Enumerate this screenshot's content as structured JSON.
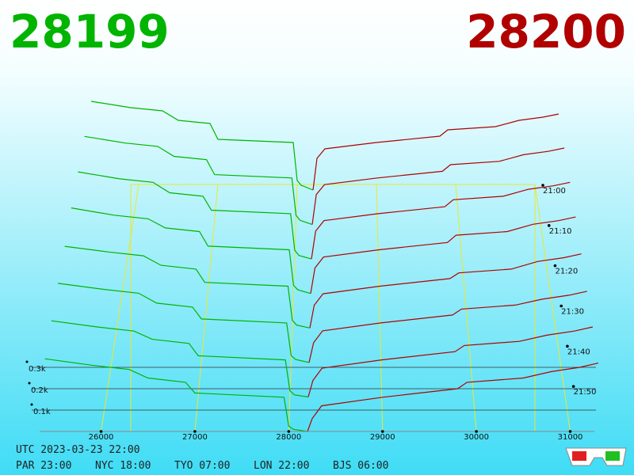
{
  "chart_data": {
    "type": "depth3d",
    "bid": 28199,
    "ask": 28200,
    "bid_color": "#00b400",
    "ask_color": "#b00000",
    "xticks": [
      26000,
      27000,
      28000,
      29000,
      30000,
      31000
    ],
    "zticks": [
      {
        "value": 100,
        "label": "0.1k"
      },
      {
        "value": 200,
        "label": "0.2k"
      },
      {
        "value": 300,
        "label": "0.3k"
      }
    ],
    "time_ticks": [
      "21:00",
      "21:10",
      "21:20",
      "21:30",
      "21:40",
      "21:50"
    ],
    "bid_prices": [
      28199,
      28050,
      28000,
      27950,
      27000,
      26900,
      26500,
      26300,
      25900,
      25400
    ],
    "ask_prices": [
      28200,
      28250,
      28350,
      29000,
      29800,
      29900,
      30500,
      30800,
      31100,
      31300
    ],
    "snapshots": [
      {
        "bids": [
          0,
          30,
          60,
          300,
          320,
          420,
          440,
          500,
          520,
          560
        ],
        "asks": [
          0,
          200,
          260,
          300,
          340,
          380,
          400,
          440,
          460,
          480
        ]
      },
      {
        "bids": [
          0,
          25,
          55,
          280,
          300,
          390,
          410,
          470,
          490,
          530
        ],
        "asks": [
          0,
          180,
          240,
          280,
          320,
          360,
          380,
          420,
          440,
          460
        ]
      },
      {
        "bids": [
          0,
          20,
          50,
          260,
          280,
          360,
          380,
          440,
          460,
          500
        ],
        "asks": [
          0,
          160,
          220,
          260,
          300,
          340,
          360,
          400,
          420,
          440
        ]
      },
      {
        "bids": [
          0,
          20,
          45,
          240,
          260,
          340,
          360,
          410,
          430,
          470
        ],
        "asks": [
          0,
          140,
          200,
          240,
          280,
          320,
          340,
          380,
          400,
          420
        ]
      },
      {
        "bids": [
          0,
          15,
          40,
          220,
          240,
          310,
          330,
          380,
          400,
          430
        ],
        "asks": [
          0,
          120,
          180,
          220,
          260,
          290,
          310,
          350,
          370,
          390
        ]
      },
      {
        "bids": [
          0,
          15,
          35,
          200,
          220,
          280,
          300,
          350,
          370,
          400
        ],
        "asks": [
          0,
          100,
          160,
          200,
          240,
          270,
          290,
          320,
          340,
          360
        ]
      },
      {
        "bids": [
          0,
          10,
          30,
          180,
          200,
          260,
          280,
          320,
          340,
          370
        ],
        "asks": [
          0,
          80,
          140,
          180,
          220,
          250,
          270,
          300,
          320,
          340
        ]
      },
      {
        "bids": [
          0,
          10,
          25,
          160,
          180,
          230,
          250,
          290,
          310,
          340
        ],
        "asks": [
          0,
          60,
          120,
          160,
          200,
          230,
          250,
          280,
          300,
          320
        ]
      }
    ],
    "utc": "UTC 2023-03-23 22:00",
    "zones": [
      "PAR 23:00",
      "NYC 18:00",
      "TYO 07:00",
      "LON 22:00",
      "BJS 06:00"
    ]
  }
}
